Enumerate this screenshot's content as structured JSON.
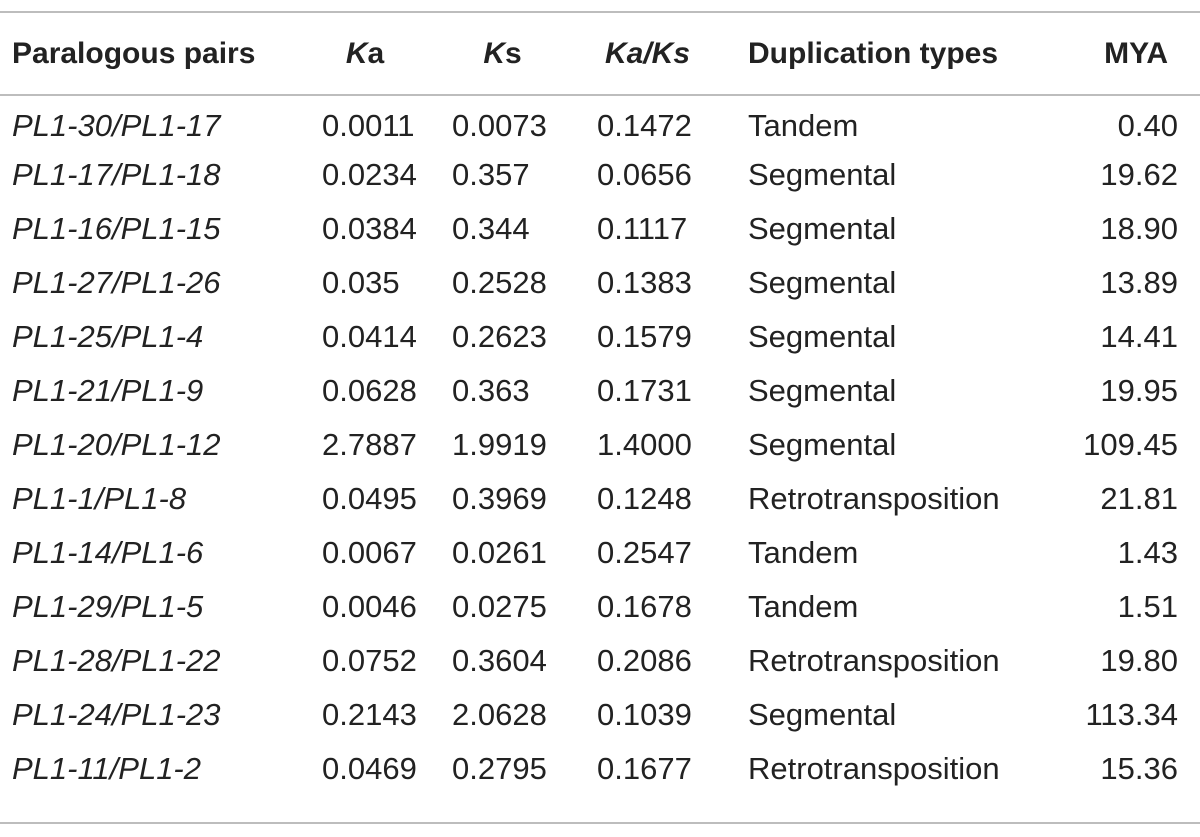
{
  "table": {
    "headers": [
      {
        "prefix": "",
        "italic": "",
        "suffix": "Paralogous pairs"
      },
      {
        "prefix": "",
        "italic": "K",
        "suffix": "a"
      },
      {
        "prefix": "",
        "italic": "K",
        "suffix": "s"
      },
      {
        "prefix": "",
        "italic": "Ka/Ks",
        "suffix": ""
      },
      {
        "prefix": "",
        "italic": "",
        "suffix": "Duplication types"
      },
      {
        "prefix": "",
        "italic": "",
        "suffix": "MYA"
      }
    ],
    "rows": [
      {
        "pair": "PL1-30/PL1-17",
        "ka": "0.0011",
        "ks": "0.0073",
        "kaks": "0.1472",
        "type": "Tandem",
        "mya": "0.40"
      },
      {
        "pair": "PL1-17/PL1-18",
        "ka": "0.0234",
        "ks": "0.357",
        "kaks": "0.0656",
        "type": "Segmental",
        "mya": "19.62"
      },
      {
        "pair": "PL1-16/PL1-15",
        "ka": "0.0384",
        "ks": "0.344",
        "kaks": "0.1117",
        "type": "Segmental",
        "mya": "18.90"
      },
      {
        "pair": "PL1-27/PL1-26",
        "ka": "0.035",
        "ks": "0.2528",
        "kaks": "0.1383",
        "type": "Segmental",
        "mya": "13.89"
      },
      {
        "pair": "PL1-25/PL1-4",
        "ka": "0.0414",
        "ks": "0.2623",
        "kaks": "0.1579",
        "type": "Segmental",
        "mya": "14.41"
      },
      {
        "pair": "PL1-21/PL1-9",
        "ka": "0.0628",
        "ks": "0.363",
        "kaks": "0.1731",
        "type": "Segmental",
        "mya": "19.95"
      },
      {
        "pair": "PL1-20/PL1-12",
        "ka": "2.7887",
        "ks": "1.9919",
        "kaks": "1.4000",
        "type": "Segmental",
        "mya": "109.45"
      },
      {
        "pair": "PL1-1/PL1-8",
        "ka": "0.0495",
        "ks": "0.3969",
        "kaks": "0.1248",
        "type": "Retrotransposition",
        "mya": "21.81"
      },
      {
        "pair": "PL1-14/PL1-6",
        "ka": "0.0067",
        "ks": "0.0261",
        "kaks": "0.2547",
        "type": "Tandem",
        "mya": "1.43"
      },
      {
        "pair": "PL1-29/PL1-5",
        "ka": "0.0046",
        "ks": "0.0275",
        "kaks": "0.1678",
        "type": "Tandem",
        "mya": "1.51"
      },
      {
        "pair": "PL1-28/PL1-22",
        "ka": "0.0752",
        "ks": "0.3604",
        "kaks": "0.2086",
        "type": "Retrotransposition",
        "mya": "19.80"
      },
      {
        "pair": "PL1-24/PL1-23",
        "ka": "0.2143",
        "ks": "2.0628",
        "kaks": "0.1039",
        "type": "Segmental",
        "mya": "113.34"
      },
      {
        "pair": "PL1-11/PL1-2",
        "ka": "0.0469",
        "ks": "0.2795",
        "kaks": "0.1677",
        "type": "Retrotransposition",
        "mya": "15.36"
      }
    ]
  }
}
